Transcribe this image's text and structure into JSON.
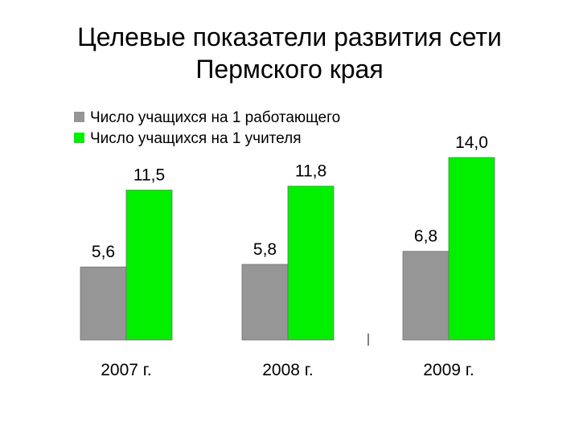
{
  "title_lines": [
    "Целевые показатели развития сети",
    "Пермского края"
  ],
  "chart_data": {
    "type": "bar",
    "categories": [
      "2007 г.",
      "2008 г.",
      "2009 г."
    ],
    "series": [
      {
        "name": "Число учащихся на 1 работающего",
        "color": "#969696",
        "values": [
          5.6,
          5.8,
          6.8
        ],
        "labels": [
          "5,6",
          "5,8",
          "6,8"
        ]
      },
      {
        "name": "Число учащихся на 1 учителя",
        "color": "#00f000",
        "values": [
          11.5,
          11.8,
          14.0
        ],
        "labels": [
          "11,5",
          "11,8",
          "14,0"
        ]
      }
    ],
    "ylim": [
      0,
      14
    ],
    "grid": false,
    "legend_position": "top-left"
  }
}
